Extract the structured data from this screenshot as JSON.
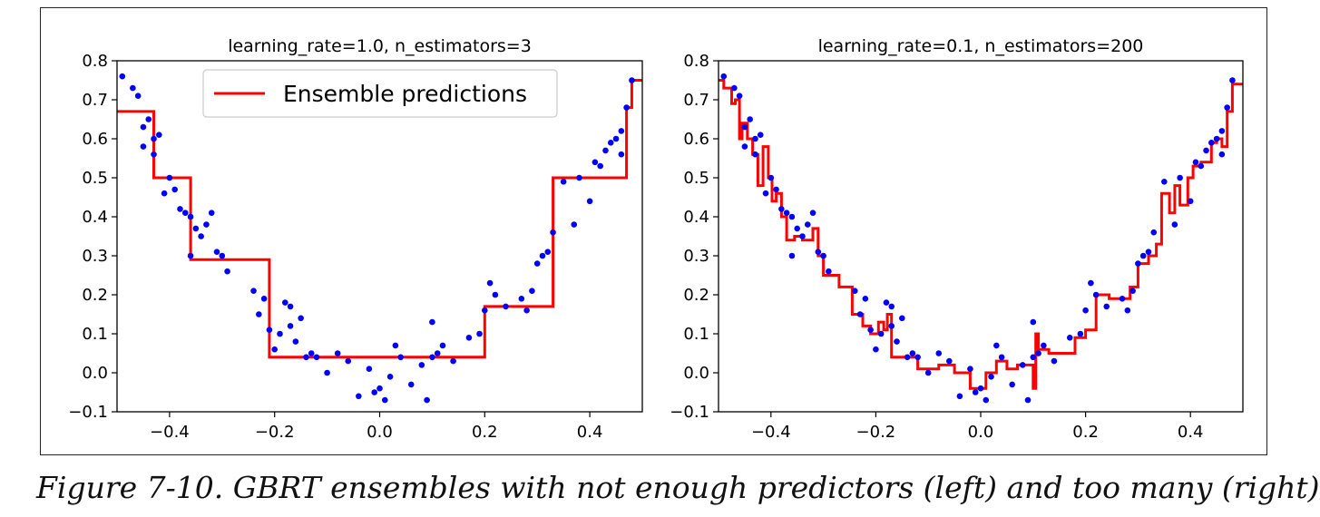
{
  "caption": "Figure 7-10. GBRT ensembles with not enough predictors (left) and too many (right)",
  "colors": {
    "line": "#ff0000",
    "points": "#0000ff",
    "axes": "#000000"
  },
  "chart_data": [
    {
      "type": "line",
      "title": "learning_rate=1.0, n_estimators=3",
      "xlabel": "",
      "ylabel": "",
      "xlim": [
        -0.5,
        0.5
      ],
      "ylim": [
        -0.1,
        0.8
      ],
      "xticks": [
        "−0.4",
        "−0.2",
        "0.0",
        "0.2",
        "0.4"
      ],
      "xtick_values": [
        -0.4,
        -0.2,
        0.0,
        0.2,
        0.4
      ],
      "yticks": [
        "−0.1",
        "0.0",
        "0.1",
        "0.2",
        "0.3",
        "0.4",
        "0.5",
        "0.6",
        "0.7",
        "0.8"
      ],
      "ytick_values": [
        -0.1,
        0.0,
        0.1,
        0.2,
        0.3,
        0.4,
        0.5,
        0.6,
        0.7,
        0.8
      ],
      "legend": {
        "position": "upper-center",
        "entries": [
          "Ensemble predictions"
        ]
      },
      "grid": false,
      "series": [
        {
          "name": "Ensemble predictions",
          "kind": "step-line",
          "x": [
            -0.5,
            -0.43,
            -0.43,
            -0.36,
            -0.36,
            -0.21,
            -0.21,
            0.2,
            0.2,
            0.33,
            0.33,
            0.47,
            0.47,
            0.48,
            0.48,
            0.5
          ],
          "y": [
            0.67,
            0.67,
            0.5,
            0.5,
            0.29,
            0.29,
            0.04,
            0.04,
            0.17,
            0.17,
            0.5,
            0.5,
            0.68,
            0.68,
            0.75,
            0.75
          ]
        },
        {
          "kind": "scatter",
          "x": [
            -0.49,
            -0.47,
            -0.46,
            -0.45,
            -0.45,
            -0.44,
            -0.43,
            -0.43,
            -0.42,
            -0.41,
            -0.4,
            -0.39,
            -0.38,
            -0.37,
            -0.36,
            -0.36,
            -0.35,
            -0.34,
            -0.33,
            -0.32,
            -0.31,
            -0.3,
            -0.29,
            -0.24,
            -0.23,
            -0.22,
            -0.21,
            -0.2,
            -0.19,
            -0.18,
            -0.17,
            -0.17,
            -0.16,
            -0.15,
            -0.14,
            -0.13,
            -0.12,
            -0.1,
            -0.08,
            -0.06,
            -0.04,
            -0.02,
            -0.01,
            0.0,
            0.01,
            0.02,
            0.03,
            0.04,
            0.06,
            0.08,
            0.09,
            0.1,
            0.1,
            0.11,
            0.12,
            0.14,
            0.17,
            0.19,
            0.2,
            0.21,
            0.22,
            0.24,
            0.27,
            0.28,
            0.29,
            0.3,
            0.31,
            0.32,
            0.33,
            0.35,
            0.37,
            0.38,
            0.4,
            0.41,
            0.42,
            0.43,
            0.44,
            0.45,
            0.46,
            0.46,
            0.47,
            0.48
          ],
          "y": [
            0.76,
            0.73,
            0.71,
            0.63,
            0.58,
            0.65,
            0.6,
            0.56,
            0.61,
            0.46,
            0.5,
            0.47,
            0.42,
            0.41,
            0.3,
            0.4,
            0.37,
            0.35,
            0.38,
            0.41,
            0.31,
            0.3,
            0.26,
            0.21,
            0.15,
            0.19,
            0.11,
            0.06,
            0.1,
            0.18,
            0.17,
            0.12,
            0.08,
            0.14,
            0.04,
            0.05,
            0.04,
            0.0,
            0.05,
            0.03,
            -0.06,
            0.01,
            -0.05,
            -0.04,
            -0.07,
            -0.01,
            0.07,
            0.04,
            -0.03,
            0.02,
            -0.07,
            0.13,
            0.04,
            0.05,
            0.07,
            0.03,
            0.09,
            0.1,
            0.16,
            0.23,
            0.2,
            0.17,
            0.19,
            0.16,
            0.21,
            0.28,
            0.3,
            0.31,
            0.36,
            0.49,
            0.38,
            0.5,
            0.44,
            0.54,
            0.53,
            0.57,
            0.59,
            0.6,
            0.62,
            0.56,
            0.68,
            0.75
          ]
        }
      ]
    },
    {
      "type": "line",
      "title": "learning_rate=0.1, n_estimators=200",
      "xlabel": "",
      "ylabel": "",
      "xlim": [
        -0.5,
        0.5
      ],
      "ylim": [
        -0.1,
        0.8
      ],
      "xticks": [
        "−0.4",
        "−0.2",
        "0.0",
        "0.2",
        "0.4"
      ],
      "xtick_values": [
        -0.4,
        -0.2,
        0.0,
        0.2,
        0.4
      ],
      "yticks": [
        "−0.1",
        "0.0",
        "0.1",
        "0.2",
        "0.3",
        "0.4",
        "0.5",
        "0.6",
        "0.7",
        "0.8"
      ],
      "ytick_values": [
        -0.1,
        0.0,
        0.1,
        0.2,
        0.3,
        0.4,
        0.5,
        0.6,
        0.7,
        0.8
      ],
      "grid": false,
      "series": [
        {
          "kind": "step-line",
          "x": [
            -0.5,
            -0.49,
            -0.49,
            -0.475,
            -0.475,
            -0.468,
            -0.468,
            -0.46,
            -0.46,
            -0.455,
            -0.455,
            -0.445,
            -0.445,
            -0.435,
            -0.435,
            -0.425,
            -0.425,
            -0.415,
            -0.415,
            -0.405,
            -0.405,
            -0.398,
            -0.398,
            -0.39,
            -0.39,
            -0.38,
            -0.38,
            -0.37,
            -0.37,
            -0.355,
            -0.355,
            -0.34,
            -0.34,
            -0.32,
            -0.32,
            -0.31,
            -0.31,
            -0.3,
            -0.3,
            -0.29,
            -0.29,
            -0.27,
            -0.27,
            -0.245,
            -0.245,
            -0.225,
            -0.225,
            -0.21,
            -0.21,
            -0.195,
            -0.195,
            -0.185,
            -0.185,
            -0.178,
            -0.178,
            -0.17,
            -0.17,
            -0.16,
            -0.16,
            -0.14,
            -0.14,
            -0.12,
            -0.12,
            -0.08,
            -0.08,
            -0.05,
            -0.05,
            -0.02,
            -0.02,
            0.0,
            0.0,
            0.01,
            0.01,
            0.03,
            0.03,
            0.05,
            0.05,
            0.07,
            0.07,
            0.1,
            0.1,
            0.105,
            0.105,
            0.11,
            0.11,
            0.13,
            0.13,
            0.16,
            0.16,
            0.18,
            0.18,
            0.2,
            0.2,
            0.22,
            0.22,
            0.245,
            0.245,
            0.27,
            0.27,
            0.285,
            0.285,
            0.3,
            0.3,
            0.32,
            0.32,
            0.335,
            0.335,
            0.345,
            0.345,
            0.36,
            0.36,
            0.37,
            0.37,
            0.38,
            0.38,
            0.395,
            0.395,
            0.405,
            0.405,
            0.42,
            0.42,
            0.44,
            0.44,
            0.45,
            0.45,
            0.46,
            0.46,
            0.47,
            0.47,
            0.48,
            0.48,
            0.5
          ],
          "y": [
            0.75,
            0.75,
            0.73,
            0.73,
            0.69,
            0.69,
            0.7,
            0.7,
            0.6,
            0.6,
            0.64,
            0.64,
            0.6,
            0.6,
            0.56,
            0.56,
            0.48,
            0.48,
            0.58,
            0.58,
            0.5,
            0.5,
            0.44,
            0.44,
            0.46,
            0.46,
            0.4,
            0.4,
            0.34,
            0.34,
            0.35,
            0.35,
            0.34,
            0.34,
            0.37,
            0.37,
            0.3,
            0.3,
            0.25,
            0.25,
            0.25,
            0.25,
            0.22,
            0.22,
            0.15,
            0.15,
            0.12,
            0.12,
            0.1,
            0.1,
            0.13,
            0.13,
            0.11,
            0.11,
            0.15,
            0.15,
            0.04,
            0.04,
            0.04,
            0.04,
            0.04,
            0.04,
            0.01,
            0.01,
            0.02,
            0.02,
            0.0,
            0.0,
            -0.04,
            -0.04,
            -0.04,
            -0.04,
            0.0,
            0.0,
            0.03,
            0.03,
            0.01,
            0.01,
            0.02,
            0.02,
            -0.04,
            -0.04,
            0.1,
            0.1,
            0.06,
            0.06,
            0.05,
            0.05,
            0.05,
            0.05,
            0.09,
            0.09,
            0.11,
            0.11,
            0.2,
            0.2,
            0.19,
            0.19,
            0.19,
            0.19,
            0.22,
            0.22,
            0.28,
            0.28,
            0.3,
            0.3,
            0.33,
            0.33,
            0.46,
            0.46,
            0.41,
            0.41,
            0.48,
            0.48,
            0.43,
            0.43,
            0.5,
            0.5,
            0.53,
            0.53,
            0.54,
            0.54,
            0.59,
            0.59,
            0.6,
            0.6,
            0.58,
            0.58,
            0.67,
            0.67,
            0.74,
            0.74
          ],
          "name": ""
        },
        {
          "kind": "scatter",
          "x": [
            -0.49,
            -0.47,
            -0.46,
            -0.45,
            -0.45,
            -0.44,
            -0.43,
            -0.43,
            -0.42,
            -0.41,
            -0.4,
            -0.39,
            -0.38,
            -0.37,
            -0.36,
            -0.36,
            -0.35,
            -0.34,
            -0.33,
            -0.32,
            -0.31,
            -0.3,
            -0.29,
            -0.24,
            -0.23,
            -0.22,
            -0.21,
            -0.2,
            -0.19,
            -0.18,
            -0.17,
            -0.17,
            -0.16,
            -0.15,
            -0.14,
            -0.13,
            -0.12,
            -0.1,
            -0.08,
            -0.06,
            -0.04,
            -0.02,
            -0.01,
            0.0,
            0.01,
            0.02,
            0.03,
            0.04,
            0.06,
            0.08,
            0.09,
            0.1,
            0.1,
            0.11,
            0.12,
            0.14,
            0.17,
            0.19,
            0.2,
            0.21,
            0.22,
            0.24,
            0.27,
            0.28,
            0.29,
            0.3,
            0.31,
            0.32,
            0.33,
            0.35,
            0.37,
            0.38,
            0.4,
            0.41,
            0.42,
            0.43,
            0.44,
            0.45,
            0.46,
            0.46,
            0.47,
            0.48
          ],
          "y": [
            0.76,
            0.73,
            0.71,
            0.63,
            0.58,
            0.65,
            0.6,
            0.56,
            0.61,
            0.46,
            0.5,
            0.47,
            0.42,
            0.41,
            0.3,
            0.4,
            0.37,
            0.35,
            0.38,
            0.41,
            0.31,
            0.3,
            0.26,
            0.21,
            0.15,
            0.19,
            0.11,
            0.06,
            0.1,
            0.18,
            0.17,
            0.12,
            0.08,
            0.14,
            0.04,
            0.05,
            0.04,
            0.0,
            0.05,
            0.03,
            -0.06,
            0.01,
            -0.05,
            -0.04,
            -0.07,
            -0.01,
            0.07,
            0.04,
            -0.03,
            0.02,
            -0.07,
            0.13,
            0.04,
            0.05,
            0.07,
            0.03,
            0.09,
            0.1,
            0.16,
            0.23,
            0.2,
            0.17,
            0.19,
            0.16,
            0.21,
            0.28,
            0.3,
            0.31,
            0.36,
            0.49,
            0.38,
            0.5,
            0.44,
            0.54,
            0.53,
            0.57,
            0.59,
            0.6,
            0.62,
            0.56,
            0.68,
            0.75
          ]
        }
      ]
    }
  ]
}
